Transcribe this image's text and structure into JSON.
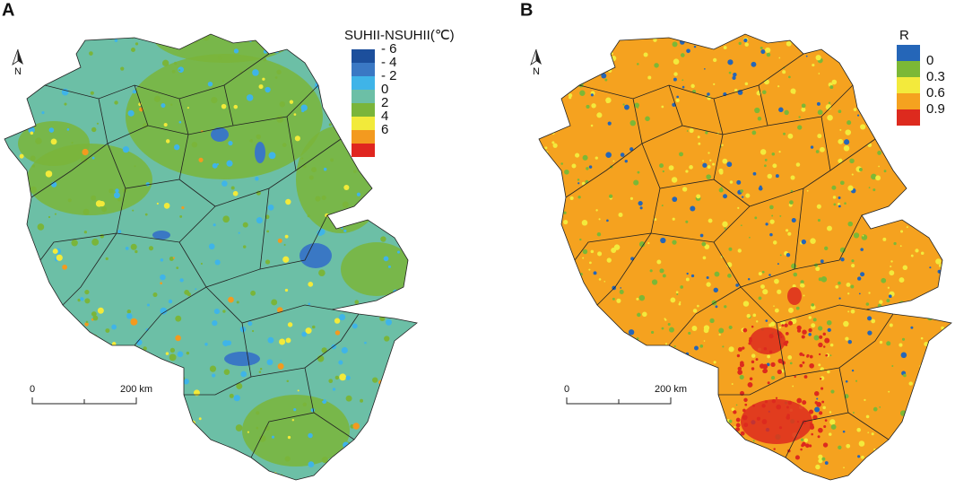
{
  "panels": [
    {
      "label": "A",
      "legend": {
        "title": "SUHII-NSUHII(℃)",
        "items": [
          {
            "label": "- 6",
            "color": "#1c4f9c"
          },
          {
            "label": "- 4",
            "color": "#3a78c4"
          },
          {
            "label": "- 2",
            "color": "#3fb4e8"
          },
          {
            "label": "0",
            "color": "#6cbfa6"
          },
          {
            "label": "2",
            "color": "#7ab53a"
          },
          {
            "label": "4",
            "color": "#f2ea3a"
          },
          {
            "label": "6",
            "color": "#f39a1f"
          },
          {
            "label": "",
            "color": "#e0261f"
          }
        ]
      },
      "scale_bar": {
        "start": "0",
        "end": "200 km"
      },
      "north": "N"
    },
    {
      "label": "B",
      "legend": {
        "title": "R",
        "items": [
          {
            "label": "0",
            "color": "#2566b8"
          },
          {
            "label": "0.3",
            "color": "#7cb836"
          },
          {
            "label": "0.6",
            "color": "#f3ea3c"
          },
          {
            "label": "0.9",
            "color": "#f5a21f"
          },
          {
            "label": "",
            "color": "#dd2a1e"
          }
        ]
      },
      "scale_bar": {
        "start": "0",
        "end": "200 km"
      },
      "north": "N"
    }
  ]
}
